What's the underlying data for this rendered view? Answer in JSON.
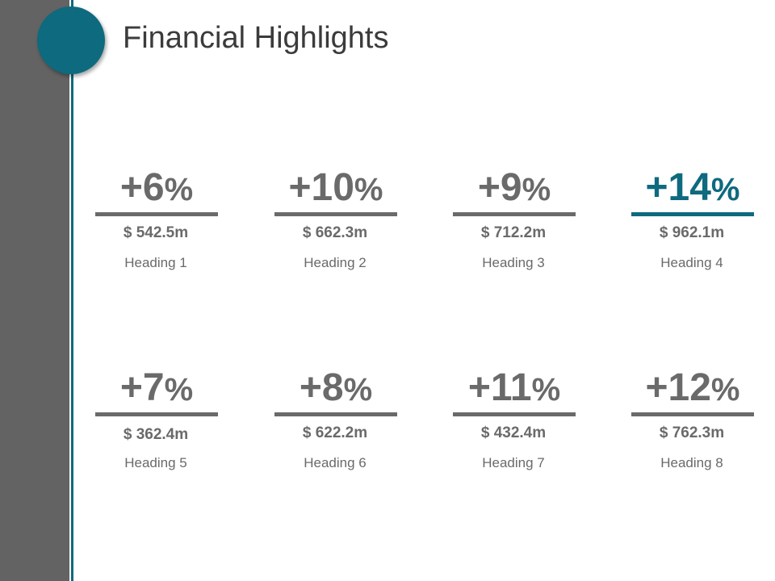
{
  "title": "Financial Highlights",
  "accent_color": "#0e6a7e",
  "cards": [
    {
      "pct": "+6",
      "symbol": "%",
      "amount": "$ 542.5m",
      "heading": "Heading 1"
    },
    {
      "pct": "+10",
      "symbol": "%",
      "amount": "$ 662.3m",
      "heading": "Heading 2"
    },
    {
      "pct": "+9",
      "symbol": "%",
      "amount": "$ 712.2m",
      "heading": "Heading 3"
    },
    {
      "pct": "+14",
      "symbol": "%",
      "amount": "$ 962.1m",
      "heading": "Heading 4"
    },
    {
      "pct": "+7",
      "symbol": "%",
      "amount": "$ 362.4m",
      "heading": "Heading 5"
    },
    {
      "pct": "+8",
      "symbol": "%",
      "amount": "$ 622.2m",
      "heading": "Heading 6"
    },
    {
      "pct": "+11",
      "symbol": "%",
      "amount": "$ 432.4m",
      "heading": "Heading 7"
    },
    {
      "pct": "+12",
      "symbol": "%",
      "amount": "$ 762.3m",
      "heading": "Heading 8"
    }
  ]
}
